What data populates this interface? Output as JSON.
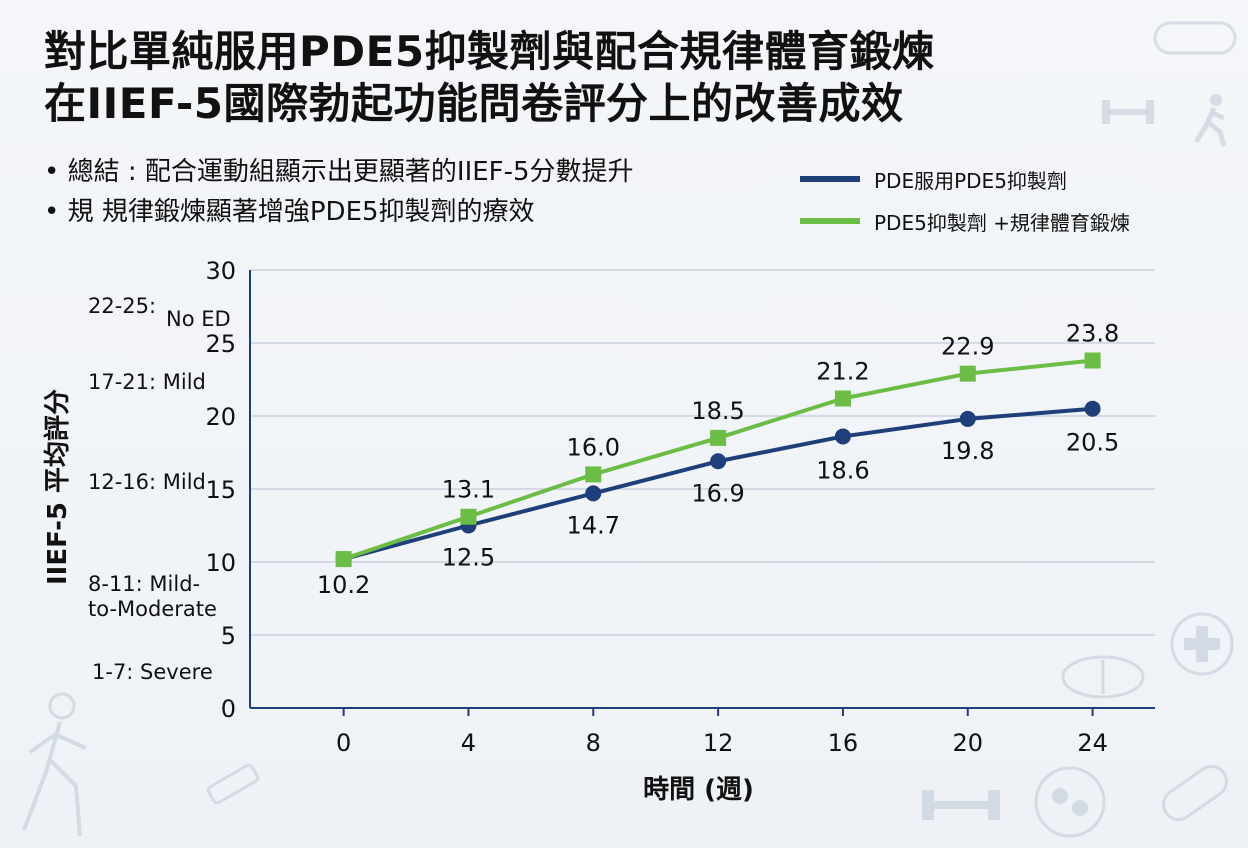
{
  "title_line1": "對比單純服用PDE5抑製劑與配合規律體育鍛煉",
  "title_line2": "在IIEF-5國際勃起功能問卷評分上的改善成效",
  "bullets": [
    "總結 : 配合運動組顯示出更顯著的IIEF-5分數提升",
    "規  規律鍛煉顯著增強PDE5抑製劑的療效"
  ],
  "colors": {
    "navy": "#1f3f7a",
    "green": "#6cbd45"
  },
  "severity_bands": [
    "22-25:",
    "No ED",
    "17-21: Mild",
    "12-16: Mild",
    "8-11: Mild-",
    "to-Moderate",
    "1-7:  Severe"
  ],
  "chart_data": {
    "type": "line",
    "title": "",
    "xlabel": "時間 (週)",
    "ylabel": "IIEF-5 平均評分",
    "x": [
      0,
      4,
      8,
      12,
      16,
      20,
      24
    ],
    "xlim": [
      -3,
      26
    ],
    "ylim": [
      0,
      30
    ],
    "yticks": [
      0,
      5,
      10,
      15,
      20,
      25,
      30
    ],
    "grid": true,
    "legend": "top-right",
    "series": [
      {
        "name": "PDE服用PDE5抑製劑",
        "values": [
          10.2,
          12.5,
          14.7,
          16.9,
          18.6,
          19.8,
          20.5
        ],
        "labels": [
          "10.2",
          "12.5",
          "14.7",
          "16.9",
          "18.6",
          "19.8",
          "20.5"
        ],
        "color": "#1f3f7a",
        "marker": "circle"
      },
      {
        "name": "PDE5抑製劑 +規律體育鍛煉",
        "values": [
          10.2,
          13.1,
          16.0,
          18.5,
          21.2,
          22.9,
          23.8
        ],
        "labels": [
          "",
          "13.1",
          "16.0",
          "18.5",
          "21.2",
          "22.9",
          "23.8"
        ],
        "color": "#6cbd45",
        "marker": "square"
      }
    ]
  }
}
